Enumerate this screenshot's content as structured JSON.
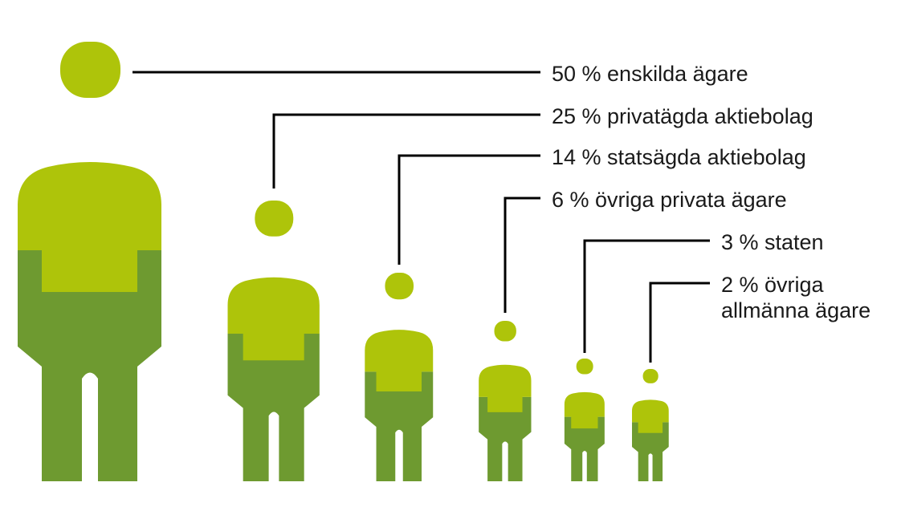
{
  "colors": {
    "shirt": "#aec40a",
    "body": "#6e9a30",
    "leader": "#000000",
    "text": "#1a1a1a"
  },
  "chart_data": {
    "type": "pictogram",
    "unit": "%",
    "series": [
      {
        "value": 50,
        "label_lines": [
          "50 % enskilda ägare"
        ]
      },
      {
        "value": 25,
        "label_lines": [
          "25 % privatägda aktiebolag"
        ]
      },
      {
        "value": 14,
        "label_lines": [
          "14 % statsägda aktiebolag"
        ]
      },
      {
        "value": 6,
        "label_lines": [
          "6 % övriga privata ägare"
        ]
      },
      {
        "value": 3,
        "label_lines": [
          "3 % staten"
        ]
      },
      {
        "value": 2,
        "label_lines": [
          "2 % övriga",
          "allmänna ägare"
        ]
      }
    ]
  }
}
